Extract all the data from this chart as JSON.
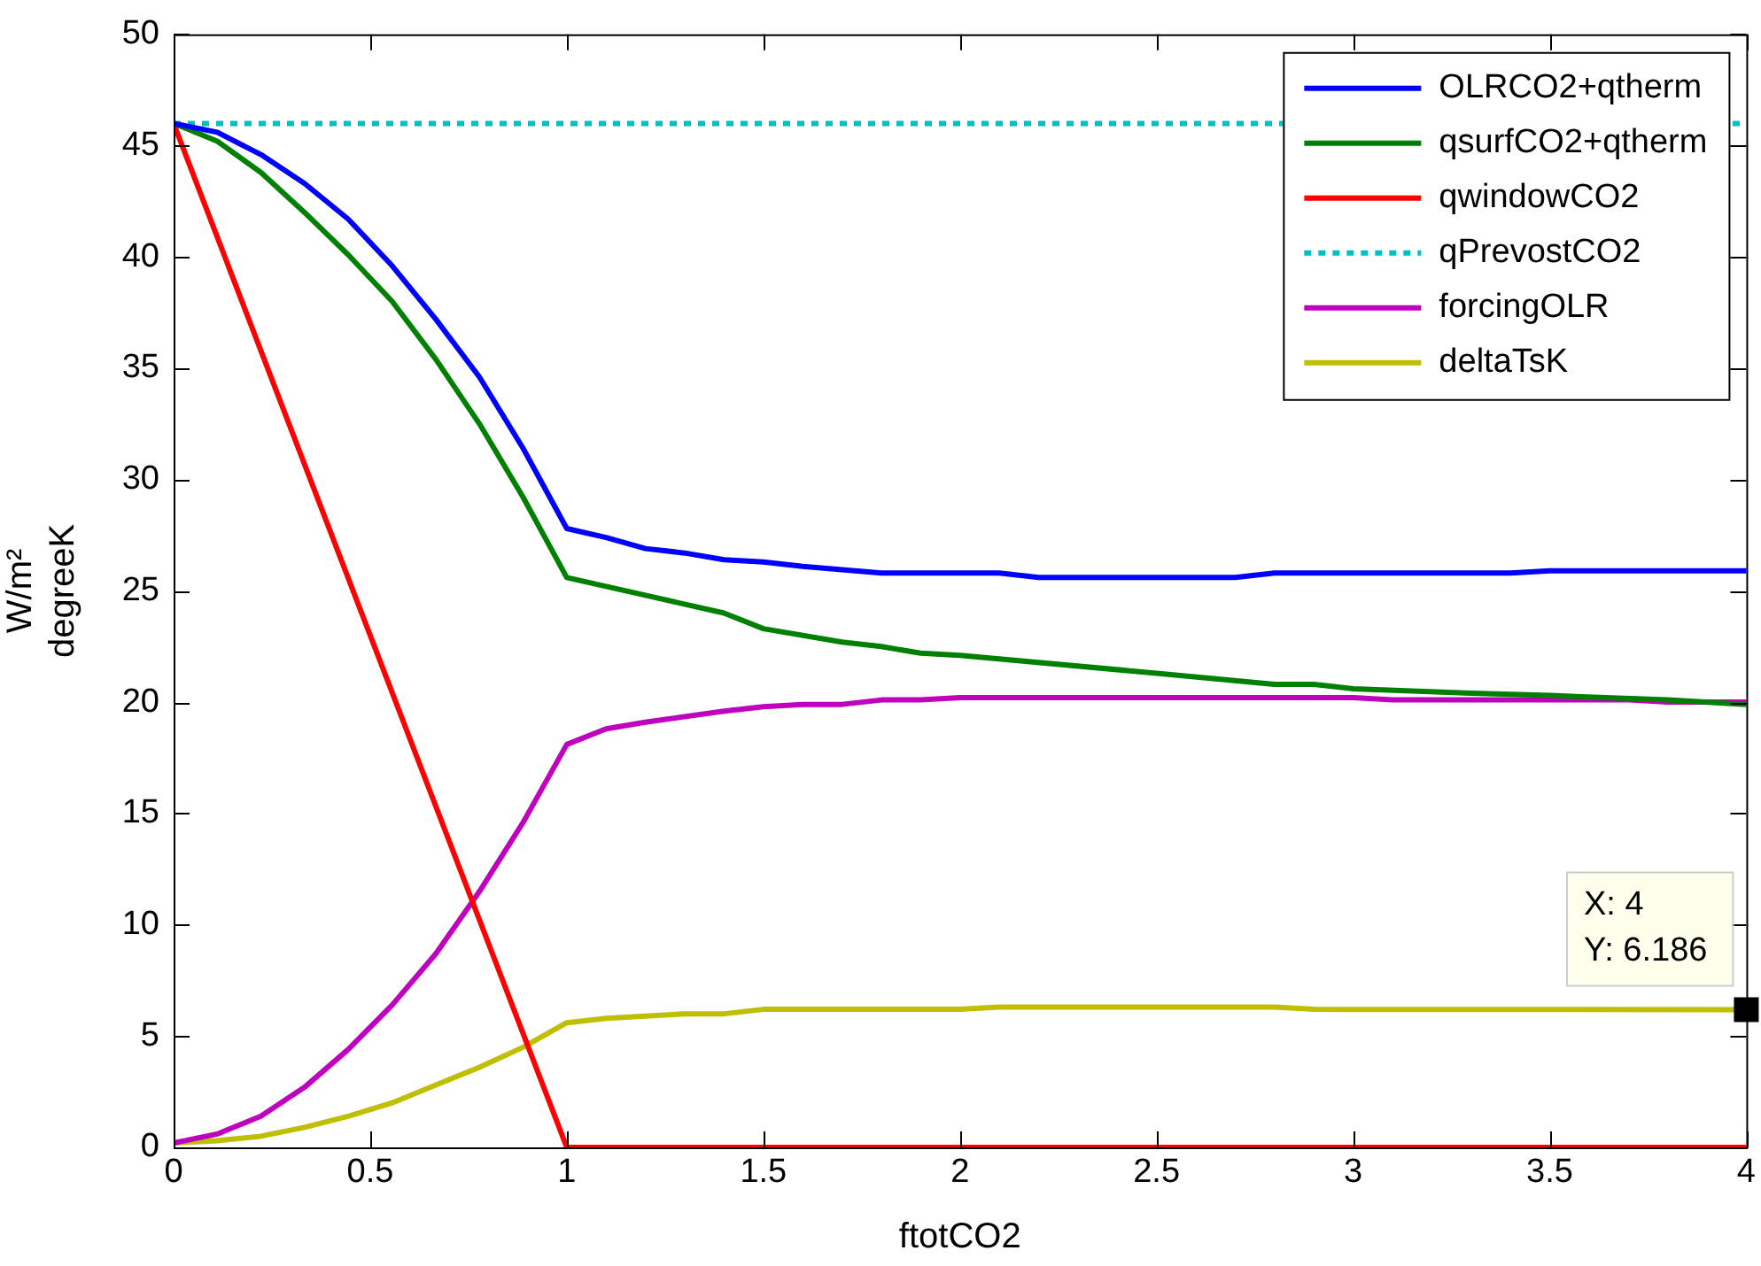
{
  "chart_data": {
    "type": "line",
    "xlabel": "ftotCO2",
    "ylabel": "W/m²\ndegreeK",
    "xlim": [
      0,
      4
    ],
    "xticks": [
      0,
      0.5,
      1,
      1.5,
      2,
      2.5,
      3,
      3.5,
      4
    ],
    "ylim": [
      0,
      50
    ],
    "yticks": [
      0,
      5,
      10,
      15,
      20,
      25,
      30,
      35,
      40,
      45,
      50
    ],
    "legend": "top right",
    "line_style": "solid",
    "series": [
      {
        "name": "OLRCO2+qtherm",
        "color": "#0000ff",
        "x": [
          0,
          0.111,
          0.222,
          0.333,
          0.444,
          0.556,
          0.667,
          0.778,
          0.889,
          1,
          1.1,
          1.2,
          1.3,
          1.4,
          1.5,
          1.6,
          1.8,
          2.1,
          2.2,
          2.7,
          2.8,
          3.4,
          3.5,
          4
        ],
        "values": [
          46,
          45.6,
          44.6,
          43.3,
          41.7,
          39.6,
          37.2,
          34.6,
          31.4,
          27.8,
          27.4,
          26.9,
          26.7,
          26.4,
          26.3,
          26.1,
          25.8,
          25.8,
          25.6,
          25.6,
          25.8,
          25.8,
          25.9,
          25.9
        ]
      },
      {
        "name": "qsurfCO2+qtherm",
        "color": "#008000",
        "x": [
          0,
          0.111,
          0.222,
          0.333,
          0.444,
          0.556,
          0.667,
          0.778,
          0.889,
          1,
          1.2,
          1.4,
          1.5,
          1.7,
          1.8,
          1.9,
          2,
          2.5,
          2.8,
          2.9,
          3,
          3.3,
          3.5,
          3.8,
          4
        ],
        "values": [
          46,
          45.2,
          43.8,
          42,
          40.1,
          38,
          35.4,
          32.5,
          29.2,
          25.6,
          24.8,
          24,
          23.3,
          22.7,
          22.5,
          22.2,
          22.1,
          21.3,
          20.8,
          20.8,
          20.6,
          20.4,
          20.3,
          20.1,
          19.9
        ]
      },
      {
        "name": "qwindowCO2",
        "color": "#ff0000",
        "x": [
          0,
          1,
          4
        ],
        "values": [
          46,
          0,
          0
        ]
      },
      {
        "name": "qPrevostCO2",
        "color": "#00bfbf",
        "line_style": "dotted",
        "x": [
          0,
          4
        ],
        "values": [
          46,
          46
        ]
      },
      {
        "name": "forcingOLR",
        "color": "#bf00bf",
        "x": [
          0,
          0.111,
          0.222,
          0.333,
          0.444,
          0.556,
          0.667,
          0.778,
          0.889,
          1,
          1.1,
          1.2,
          1.4,
          1.5,
          1.6,
          1.7,
          1.8,
          1.9,
          2,
          3,
          3.1,
          3.7,
          3.8,
          4
        ],
        "values": [
          0.2,
          0.6,
          1.4,
          2.7,
          4.4,
          6.4,
          8.7,
          11.5,
          14.6,
          18.1,
          18.8,
          19.1,
          19.6,
          19.8,
          19.9,
          19.9,
          20.1,
          20.1,
          20.2,
          20.2,
          20.1,
          20.1,
          20,
          20
        ]
      },
      {
        "name": "deltaTsK",
        "color": "#bfbf00",
        "x": [
          0,
          0.111,
          0.222,
          0.333,
          0.444,
          0.556,
          0.667,
          0.778,
          0.889,
          1,
          1.1,
          1.2,
          1.3,
          1.4,
          1.5,
          2,
          2.1,
          2.8,
          2.9,
          4
        ],
        "values": [
          0.2,
          0.3,
          0.5,
          0.9,
          1.4,
          2,
          2.8,
          3.6,
          4.5,
          5.6,
          5.8,
          5.9,
          6,
          6,
          6.2,
          6.2,
          6.3,
          6.3,
          6.2,
          6.186
        ]
      }
    ],
    "annotations": [
      {
        "text": "X: 4\nY: 6.186",
        "x": 4,
        "y": 6.186
      }
    ]
  }
}
